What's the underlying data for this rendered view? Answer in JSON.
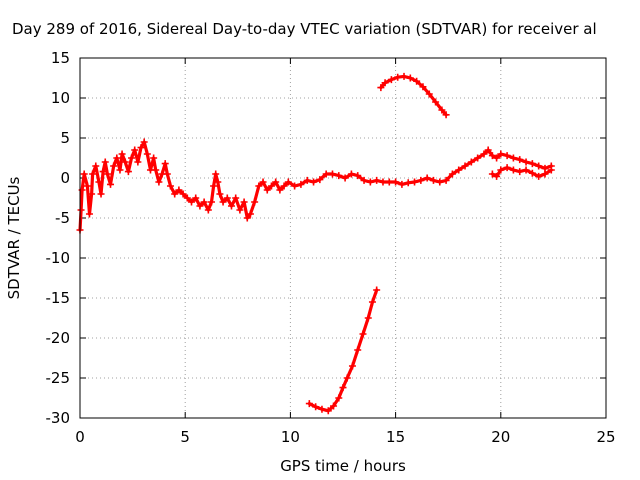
{
  "chart_data": {
    "type": "scatter",
    "title": "Day 289 of 2016, Sidereal Day-to-day VTEC variation (SDTVAR) for receiver al",
    "xlabel": "GPS time / hours",
    "ylabel": "SDTVAR / TECUs",
    "xlim": [
      0,
      25
    ],
    "ylim": [
      -30,
      15
    ],
    "xticks": [
      0,
      5,
      10,
      15,
      20,
      25
    ],
    "yticks": [
      -30,
      -25,
      -20,
      -15,
      -10,
      -5,
      0,
      5,
      10,
      15
    ],
    "grid": true,
    "marker": "plus",
    "color": "#ff0000",
    "series": [
      {
        "name": "main-trace",
        "points": [
          [
            0.0,
            -6.5
          ],
          [
            0.05,
            -4.0
          ],
          [
            0.1,
            -1.5
          ],
          [
            0.2,
            0.5
          ],
          [
            0.35,
            -1.0
          ],
          [
            0.45,
            -4.5
          ],
          [
            0.55,
            -2.0
          ],
          [
            0.6,
            0.5
          ],
          [
            0.75,
            1.5
          ],
          [
            0.9,
            -0.5
          ],
          [
            1.0,
            -2.0
          ],
          [
            1.1,
            0.8
          ],
          [
            1.2,
            2.0
          ],
          [
            1.3,
            0.5
          ],
          [
            1.45,
            -0.8
          ],
          [
            1.6,
            1.5
          ],
          [
            1.75,
            2.5
          ],
          [
            1.9,
            1.0
          ],
          [
            2.0,
            3.0
          ],
          [
            2.15,
            2.0
          ],
          [
            2.3,
            0.8
          ],
          [
            2.45,
            2.5
          ],
          [
            2.6,
            3.5
          ],
          [
            2.75,
            2.0
          ],
          [
            2.9,
            3.8
          ],
          [
            3.05,
            4.5
          ],
          [
            3.2,
            3.0
          ],
          [
            3.35,
            1.0
          ],
          [
            3.5,
            2.5
          ],
          [
            3.6,
            1.0
          ],
          [
            3.75,
            -0.5
          ],
          [
            3.9,
            0.5
          ],
          [
            4.05,
            1.8
          ],
          [
            4.15,
            0.5
          ],
          [
            4.3,
            -1.0
          ],
          [
            4.5,
            -2.0
          ],
          [
            4.7,
            -1.5
          ],
          [
            4.9,
            -2.0
          ],
          [
            5.1,
            -2.5
          ],
          [
            5.3,
            -3.0
          ],
          [
            5.5,
            -2.5
          ],
          [
            5.7,
            -3.5
          ],
          [
            5.9,
            -3.0
          ],
          [
            6.1,
            -4.0
          ],
          [
            6.25,
            -3.0
          ],
          [
            6.35,
            -1.0
          ],
          [
            6.45,
            0.5
          ],
          [
            6.55,
            -0.5
          ],
          [
            6.65,
            -2.0
          ],
          [
            6.8,
            -3.0
          ],
          [
            7.0,
            -2.5
          ],
          [
            7.2,
            -3.5
          ],
          [
            7.4,
            -2.5
          ],
          [
            7.6,
            -4.0
          ],
          [
            7.8,
            -3.0
          ],
          [
            7.95,
            -5.0
          ],
          [
            8.1,
            -4.5
          ],
          [
            8.3,
            -3.0
          ],
          [
            8.5,
            -1.0
          ],
          [
            8.7,
            -0.5
          ],
          [
            8.9,
            -1.5
          ],
          [
            9.1,
            -1.0
          ],
          [
            9.3,
            -0.5
          ],
          [
            9.5,
            -1.5
          ],
          [
            9.7,
            -1.0
          ],
          [
            9.9,
            -0.5
          ],
          [
            10.2,
            -1.0
          ],
          [
            10.5,
            -0.8
          ],
          [
            10.8,
            -0.3
          ],
          [
            11.1,
            -0.5
          ],
          [
            11.4,
            -0.2
          ],
          [
            11.7,
            0.5
          ],
          [
            12.0,
            0.5
          ],
          [
            12.3,
            0.3
          ],
          [
            12.6,
            0.0
          ],
          [
            12.9,
            0.5
          ],
          [
            13.2,
            0.3
          ],
          [
            13.5,
            -0.3
          ],
          [
            13.8,
            -0.5
          ],
          [
            14.1,
            -0.3
          ],
          [
            14.4,
            -0.5
          ],
          [
            14.7,
            -0.5
          ],
          [
            15.0,
            -0.5
          ],
          [
            15.3,
            -0.8
          ],
          [
            15.6,
            -0.6
          ],
          [
            15.9,
            -0.5
          ],
          [
            16.2,
            -0.3
          ],
          [
            16.5,
            0.0
          ],
          [
            16.8,
            -0.3
          ],
          [
            17.1,
            -0.5
          ],
          [
            17.4,
            -0.3
          ],
          [
            17.7,
            0.5
          ],
          [
            18.0,
            1.0
          ],
          [
            18.3,
            1.5
          ],
          [
            18.6,
            2.0
          ],
          [
            18.9,
            2.5
          ],
          [
            19.2,
            3.0
          ],
          [
            19.4,
            3.5
          ],
          [
            19.6,
            2.8
          ],
          [
            19.8,
            2.5
          ],
          [
            20.0,
            3.0
          ],
          [
            20.3,
            2.8
          ],
          [
            20.6,
            2.5
          ],
          [
            20.9,
            2.3
          ],
          [
            21.2,
            2.0
          ],
          [
            21.5,
            1.8
          ],
          [
            21.8,
            1.5
          ],
          [
            22.1,
            1.2
          ],
          [
            22.4,
            1.5
          ]
        ]
      },
      {
        "name": "tail-trace",
        "points": [
          [
            19.6,
            0.5
          ],
          [
            19.8,
            0.2
          ],
          [
            20.0,
            1.0
          ],
          [
            20.3,
            1.3
          ],
          [
            20.6,
            1.0
          ],
          [
            20.9,
            0.8
          ],
          [
            21.2,
            1.0
          ],
          [
            21.5,
            0.6
          ],
          [
            21.8,
            0.2
          ],
          [
            22.1,
            0.5
          ],
          [
            22.4,
            1.0
          ]
        ]
      },
      {
        "name": "upper-arc",
        "points": [
          [
            14.3,
            11.3
          ],
          [
            14.5,
            11.9
          ],
          [
            14.8,
            12.3
          ],
          [
            15.1,
            12.6
          ],
          [
            15.4,
            12.7
          ],
          [
            15.7,
            12.5
          ],
          [
            16.0,
            12.1
          ],
          [
            16.3,
            11.4
          ],
          [
            16.6,
            10.5
          ],
          [
            16.9,
            9.5
          ],
          [
            17.2,
            8.5
          ],
          [
            17.4,
            7.9
          ]
        ]
      },
      {
        "name": "lower-rise",
        "points": [
          [
            10.9,
            -28.2
          ],
          [
            11.2,
            -28.6
          ],
          [
            11.5,
            -28.9
          ],
          [
            11.8,
            -29.1
          ],
          [
            12.05,
            -28.5
          ],
          [
            12.3,
            -27.5
          ],
          [
            12.5,
            -26.2
          ],
          [
            12.7,
            -25.0
          ],
          [
            12.95,
            -23.5
          ],
          [
            13.2,
            -21.5
          ],
          [
            13.45,
            -19.5
          ],
          [
            13.7,
            -17.5
          ],
          [
            13.9,
            -15.5
          ],
          [
            14.1,
            -14.0
          ]
        ]
      }
    ]
  }
}
